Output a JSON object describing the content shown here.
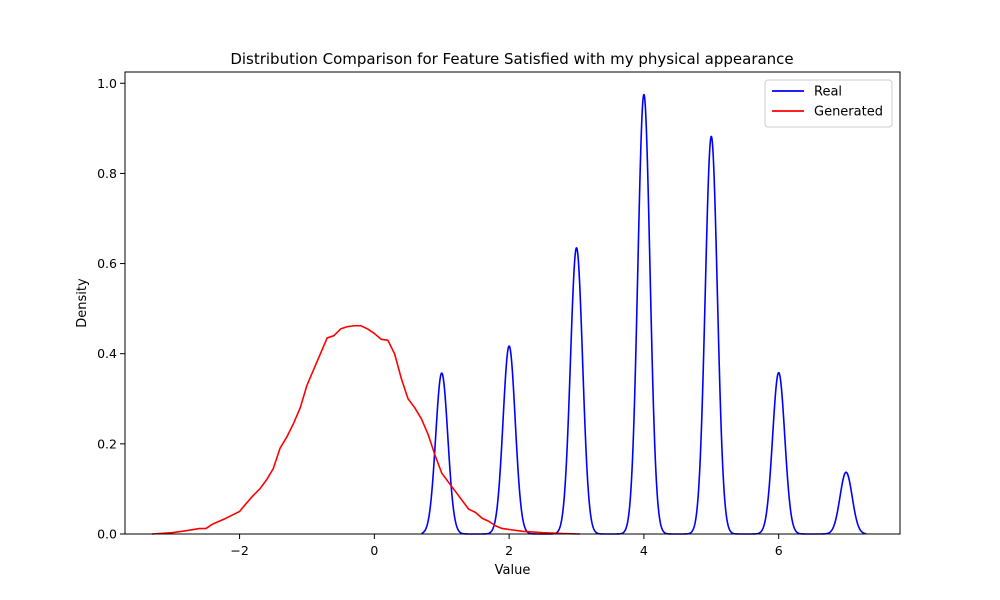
{
  "chart_data": {
    "type": "line",
    "title": "Distribution Comparison for Feature Satisfied with my physical appearance",
    "xlabel": "Value",
    "ylabel": "Density",
    "xlim": [
      -3.7,
      7.8
    ],
    "ylim": [
      0,
      1.025
    ],
    "xticks": [
      -2,
      0,
      2,
      4,
      6
    ],
    "xtick_labels": [
      "−2",
      "0",
      "2",
      "4",
      "6"
    ],
    "yticks": [
      0.0,
      0.2,
      0.4,
      0.6,
      0.8,
      1.0
    ],
    "ytick_labels": [
      "0.0",
      "0.2",
      "0.4",
      "0.6",
      "0.8",
      "1.0"
    ],
    "grid": false,
    "legend": "top-right",
    "series": [
      {
        "name": "Real",
        "color": "#0000ff",
        "kind": "kde_peaks",
        "x_range": [
          0.7,
          7.3
        ],
        "peaks": [
          {
            "center": 1,
            "height": 0.357
          },
          {
            "center": 2,
            "height": 0.417
          },
          {
            "center": 3,
            "height": 0.635
          },
          {
            "center": 4,
            "height": 0.975
          },
          {
            "center": 5,
            "height": 0.882
          },
          {
            "center": 6,
            "height": 0.358
          },
          {
            "center": 7,
            "height": 0.137
          }
        ],
        "peak_sigma": 0.09
      },
      {
        "name": "Generated",
        "color": "#ff0000",
        "x": [
          -3.3,
          -3.0,
          -2.8,
          -2.6,
          -2.5,
          -2.4,
          -2.2,
          -2.0,
          -1.9,
          -1.8,
          -1.7,
          -1.6,
          -1.5,
          -1.4,
          -1.3,
          -1.2,
          -1.1,
          -1.0,
          -0.9,
          -0.8,
          -0.7,
          -0.6,
          -0.5,
          -0.4,
          -0.3,
          -0.2,
          -0.1,
          0.0,
          0.1,
          0.2,
          0.3,
          0.4,
          0.5,
          0.6,
          0.7,
          0.8,
          0.9,
          1.0,
          1.1,
          1.2,
          1.3,
          1.4,
          1.5,
          1.6,
          1.7,
          1.8,
          1.9,
          2.0,
          2.2,
          2.5,
          2.8,
          3.05
        ],
        "y": [
          0.0,
          0.003,
          0.007,
          0.012,
          0.012,
          0.022,
          0.035,
          0.05,
          0.068,
          0.085,
          0.1,
          0.12,
          0.145,
          0.19,
          0.215,
          0.245,
          0.28,
          0.33,
          0.365,
          0.4,
          0.435,
          0.44,
          0.455,
          0.46,
          0.462,
          0.462,
          0.455,
          0.445,
          0.432,
          0.43,
          0.4,
          0.345,
          0.3,
          0.28,
          0.255,
          0.22,
          0.175,
          0.135,
          0.115,
          0.095,
          0.075,
          0.055,
          0.048,
          0.035,
          0.028,
          0.018,
          0.012,
          0.01,
          0.006,
          0.003,
          0.001,
          0.0
        ]
      }
    ]
  }
}
